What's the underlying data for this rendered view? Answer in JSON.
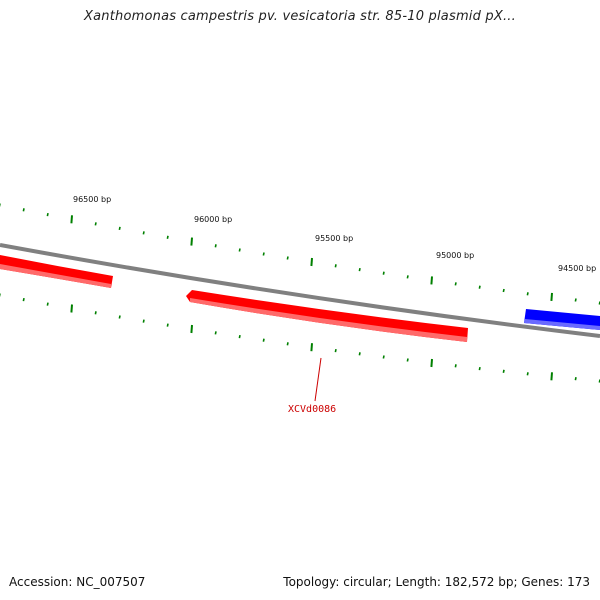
{
  "title": "Xanthomonas campestris pv. vesicatoria str. 85-10 plasmid pX...",
  "accession_text": "Accession: NC_007507",
  "summary_text": "Topology: circular; Length: 182,572 bp; Genes: 173",
  "colors": {
    "backbone": "#808080",
    "forward_gene": "#ff0000",
    "reverse_gene": "#0000ff",
    "tick": "#008000",
    "gene_label": "#cc0000"
  },
  "tick_labels": [
    "96500 bp",
    "96000 bp",
    "95500 bp",
    "95000 bp",
    "94500 bp"
  ],
  "genes": [
    {
      "label": "",
      "strand": "forward",
      "color": "red"
    },
    {
      "label": "XCVd0086",
      "strand": "forward",
      "color": "red"
    },
    {
      "label": "",
      "strand": "reverse",
      "color": "blue"
    }
  ]
}
